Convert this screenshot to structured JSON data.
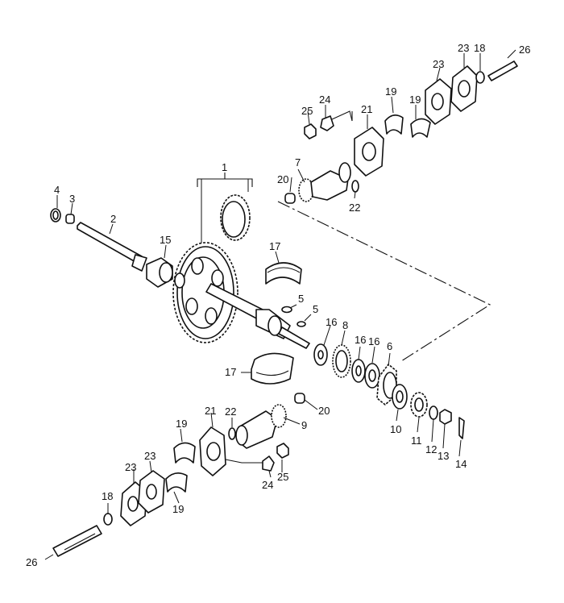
{
  "labels": {
    "l1": "1",
    "l2": "2",
    "l3": "3",
    "l4": "4",
    "l5a": "5",
    "l5b": "5",
    "l6": "6",
    "l7": "7",
    "l8": "8",
    "l9": "9",
    "l10": "10",
    "l11": "11",
    "l12": "12",
    "l13": "13",
    "l14": "14",
    "l15": "15",
    "l16a": "16",
    "l16b": "16",
    "l16c": "16",
    "l17a": "17",
    "l17b": "17",
    "l18a": "18",
    "l18b": "18",
    "l19a": "19",
    "l19b": "19",
    "l19c": "19",
    "l19d": "19",
    "l20a": "20",
    "l20b": "20",
    "l21a": "21",
    "l21b": "21",
    "l22a": "22",
    "l22b": "22",
    "l23a": "23",
    "l23b": "23",
    "l23c": "23",
    "l23d": "23",
    "l24a": "24",
    "l24b": "24",
    "l25a": "25",
    "l25b": "25",
    "l26a": "26",
    "l26b": "26"
  }
}
